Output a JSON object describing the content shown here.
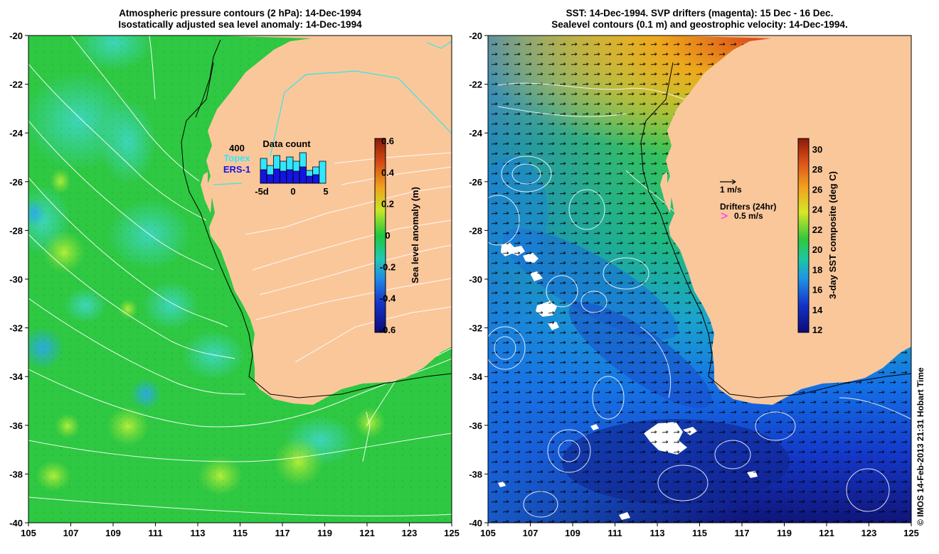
{
  "left_panel": {
    "title_line1": "Atmospheric pressure contours (2 hPa): 14-Dec-1994",
    "title_line2": "Isostatically adjusted sea level anomaly: 14-Dec-1994",
    "colorbar": {
      "label": "Sea level anomaly (m)",
      "ticks": [
        "0.6",
        "0.4",
        "0.2",
        "0",
        "-0.2",
        "-0.4",
        "-0.6"
      ],
      "range": [
        -0.6,
        0.6
      ]
    },
    "data_count": {
      "max_label": "400",
      "title": "Data count",
      "legend_topex": "Topex",
      "legend_ers": "ERS-1",
      "x_ticks": [
        "-5d",
        "0",
        "5"
      ],
      "topex_color": "#33e6ff",
      "ers_color": "#1414e0",
      "bars": [
        {
          "day": -5,
          "total": 0.7,
          "ers": 0.38
        },
        {
          "day": -4,
          "total": 0.5,
          "ers": 0.24
        },
        {
          "day": -3,
          "total": 0.78,
          "ers": 0.4
        },
        {
          "day": -2,
          "total": 0.62,
          "ers": 0.34
        },
        {
          "day": -1,
          "total": 0.74,
          "ers": 0.38
        },
        {
          "day": 0,
          "total": 0.62,
          "ers": 0.34
        },
        {
          "day": 1,
          "total": 0.86,
          "ers": 0.46
        },
        {
          "day": 2,
          "total": 0.36,
          "ers": 0.2
        },
        {
          "day": 3,
          "total": 0.46,
          "ers": 0.24
        },
        {
          "day": 4,
          "total": 0.62,
          "ers": 0.0
        }
      ]
    }
  },
  "right_panel": {
    "title_line1": "SST: 14-Dec-1994. SVP drifters (magenta): 15 Dec - 16 Dec.",
    "title_line2": "Sealevel contours (0.1 m) and geostrophic velocity: 14-Dec-1994.",
    "colorbar": {
      "label": "3-day SST composite (deg C)",
      "ticks": [
        "30",
        "28",
        "26",
        "24",
        "22",
        "20",
        "18",
        "16",
        "14",
        "12"
      ],
      "range": [
        12,
        31
      ]
    },
    "scale_arrow_label": "1 m/s",
    "drifters_label": "Drifters (24hr)",
    "drifter_speed_label": "0.5 m/s",
    "drifter_color": "#ff33ff"
  },
  "axes": {
    "lon_ticks": [
      "105",
      "107",
      "109",
      "111",
      "113",
      "115",
      "117",
      "119",
      "121",
      "123",
      "125"
    ],
    "lat_ticks": [
      "-20",
      "-22",
      "-24",
      "-26",
      "-28",
      "-30",
      "-32",
      "-34",
      "-36",
      "-38",
      "-40"
    ],
    "lon_range": [
      105,
      125
    ],
    "lat_range": [
      -40,
      -20
    ]
  },
  "colors": {
    "land": "#fac79b",
    "contour": "#ffffff",
    "cyan_line": "#33e6e6"
  },
  "credit": "© IMOS 14-Feb-2013 21:31 Hobart Time"
}
